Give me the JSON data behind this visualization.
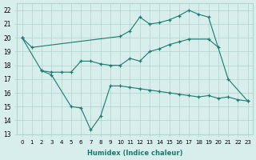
{
  "xlabel": "Humidex (Indice chaleur)",
  "color": "#1a7a6e",
  "bg_color": "#d8eeec",
  "grid_color": "#b0d4d0",
  "ylim": [
    13,
    22.5
  ],
  "xlim": [
    -0.5,
    23.5
  ],
  "series": [
    {
      "x": [
        0,
        1,
        10,
        11,
        12,
        13,
        14,
        15,
        16,
        17,
        18,
        19,
        21,
        23
      ],
      "y": [
        20.0,
        19.3,
        20.1,
        20.5,
        21.5,
        21.0,
        21.1,
        21.3,
        21.6,
        22.0,
        21.7,
        21.5,
        17.0,
        15.4
      ]
    },
    {
      "x": [
        0,
        2,
        3,
        4,
        5,
        6,
        7,
        8,
        9,
        10,
        11,
        12,
        13,
        14,
        15,
        16,
        17,
        19,
        20
      ],
      "y": [
        20.0,
        17.6,
        17.5,
        17.5,
        17.5,
        18.3,
        18.3,
        18.1,
        18.0,
        18.0,
        18.5,
        18.3,
        19.0,
        19.2,
        19.5,
        19.7,
        19.9,
        19.9,
        19.3
      ]
    },
    {
      "x": [
        2,
        3,
        5,
        6,
        7,
        8,
        9,
        10,
        11,
        12,
        13,
        14,
        15,
        16,
        17,
        18,
        19,
        20,
        21,
        22,
        23
      ],
      "y": [
        17.6,
        17.3,
        15.0,
        14.9,
        13.3,
        14.3,
        16.5,
        16.5,
        16.4,
        16.3,
        16.2,
        16.1,
        16.0,
        15.9,
        15.8,
        15.7,
        15.8,
        15.6,
        15.7,
        15.5,
        15.4
      ]
    }
  ]
}
